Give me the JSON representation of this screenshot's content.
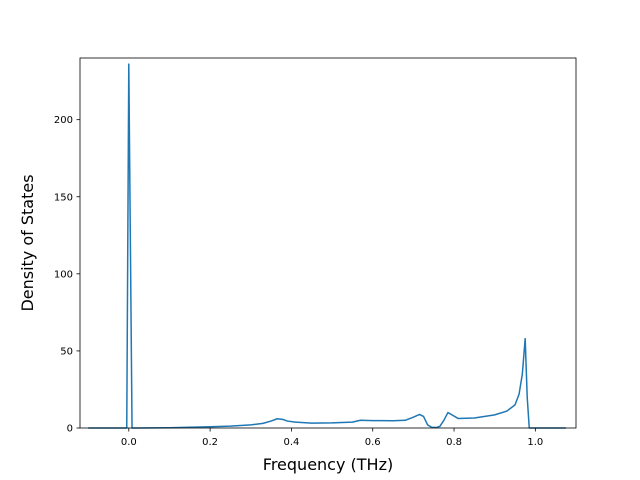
{
  "chart_data": {
    "type": "line",
    "title": "",
    "xlabel": "Frequency (THz)",
    "ylabel": "Density of States",
    "xlim": [
      -0.12,
      1.1
    ],
    "ylim": [
      0,
      240
    ],
    "xticks": [
      0.0,
      0.2,
      0.4,
      0.6,
      0.8,
      1.0
    ],
    "xtick_labels": [
      "0.0",
      "0.2",
      "0.4",
      "0.6",
      "0.8",
      "1.0"
    ],
    "yticks": [
      0,
      50,
      100,
      150,
      200
    ],
    "ytick_labels": [
      "0",
      "50",
      "100",
      "150",
      "200"
    ],
    "grid": false,
    "legend": "none",
    "color": "#1f77b4",
    "series": [
      {
        "x": [
          -0.1,
          -0.005,
          0.0,
          0.008,
          0.02,
          0.1,
          0.15,
          0.2,
          0.25,
          0.3,
          0.33,
          0.35,
          0.365,
          0.38,
          0.39,
          0.41,
          0.45,
          0.5,
          0.55,
          0.57,
          0.6,
          0.65,
          0.68,
          0.7,
          0.715,
          0.725,
          0.735,
          0.745,
          0.755,
          0.765,
          0.775,
          0.785,
          0.795,
          0.81,
          0.85,
          0.9,
          0.93,
          0.95,
          0.96,
          0.968,
          0.975,
          0.98,
          0.985,
          1.0,
          1.075
        ],
        "y": [
          0,
          0,
          236,
          0,
          0,
          0.2,
          0.5,
          0.8,
          1.2,
          2.0,
          3.0,
          4.5,
          6.0,
          5.5,
          4.5,
          3.8,
          3.2,
          3.3,
          3.8,
          5.0,
          4.8,
          4.7,
          5.0,
          7.0,
          8.8,
          7.5,
          2.0,
          0.5,
          0.3,
          1.0,
          5.0,
          10.0,
          8.5,
          6.2,
          6.5,
          8.5,
          11.0,
          15.0,
          22.0,
          35.0,
          58.0,
          20.0,
          0,
          0,
          0
        ]
      }
    ]
  }
}
